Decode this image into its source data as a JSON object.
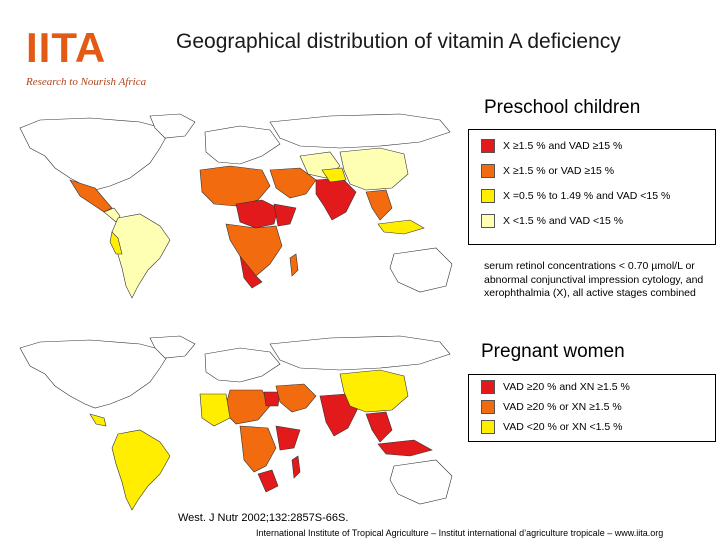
{
  "logo": {
    "text": "IITA",
    "tagline": "Research to Nourish Africa"
  },
  "title": "Geographical distribution of vitamin A deficiency",
  "colors": {
    "red": "#e31a1c",
    "orange": "#f26b0f",
    "yellow": "#ffee00",
    "pale": "#ffffb3",
    "white": "#ffffff",
    "border": "#333333"
  },
  "preschool": {
    "heading": "Preschool children",
    "legend": [
      {
        "color": "#e31a1c",
        "label": "X ≥1.5 % and VAD ≥15 %"
      },
      {
        "color": "#f26b0f",
        "label": "X ≥1.5 % or VAD ≥15 %"
      },
      {
        "color": "#ffee00",
        "label": "X =0.5 % to 1.49 % and VAD <15 %"
      },
      {
        "color": "#ffffb3",
        "label": "X <1.5 % and VAD <15 %"
      }
    ],
    "note": "serum retinol concentrations < 0.70 µmol/L or abnormal conjunctival impression cytology, and xerophthalmia (X), all active stages combined"
  },
  "pregnant": {
    "heading": "Pregnant women",
    "legend": [
      {
        "color": "#e31a1c",
        "label": "VAD ≥20 % and XN ≥1.5 %"
      },
      {
        "color": "#f26b0f",
        "label": "VAD ≥20 % or XN ≥1.5 %"
      },
      {
        "color": "#ffee00",
        "label": "VAD <20 % or XN <1.5 %"
      }
    ]
  },
  "citation": "West. J Nutr 2002;132:2857S-66S.",
  "footer": "International Institute of Tropical Agriculture – Institut international d’agriculture tropicale – www.iita.org"
}
